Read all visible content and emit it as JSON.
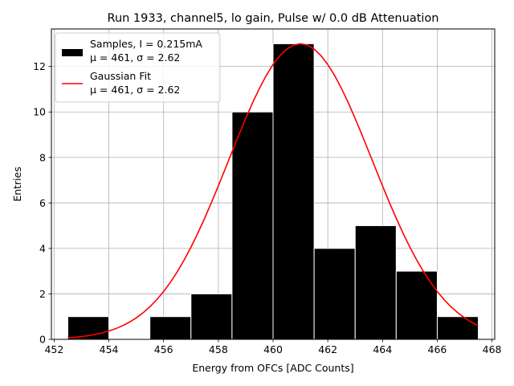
{
  "chart_data": {
    "type": "bar",
    "title": "Run 1933, channel5, lo gain, Pulse w/ 0.0 dB Attenuation",
    "xlabel": "Energy from OFCs [ADC Counts]",
    "ylabel": "Entries",
    "xlim": [
      451.9,
      468.1
    ],
    "ylim": [
      0,
      13.65
    ],
    "xticks": [
      452,
      454,
      456,
      458,
      460,
      462,
      464,
      466,
      468
    ],
    "xtick_labels": [
      "452",
      "454",
      "456",
      "458",
      "460",
      "462",
      "464",
      "466",
      "468"
    ],
    "yticks": [
      0,
      2,
      4,
      6,
      8,
      10,
      12
    ],
    "ytick_labels": [
      "0",
      "2",
      "4",
      "6",
      "8",
      "10",
      "12"
    ],
    "grid": true,
    "legend_position": "top-left",
    "histogram": {
      "name": "Samples, I = 0.215mA",
      "bins": [
        {
          "x0": 452.5,
          "x1": 454.0,
          "count": 1
        },
        {
          "x0": 455.5,
          "x1": 457.0,
          "count": 1
        },
        {
          "x0": 457.0,
          "x1": 458.5,
          "count": 2
        },
        {
          "x0": 458.5,
          "x1": 460.0,
          "count": 10
        },
        {
          "x0": 460.0,
          "x1": 461.5,
          "count": 13
        },
        {
          "x0": 461.5,
          "x1": 463.0,
          "count": 4
        },
        {
          "x0": 463.0,
          "x1": 464.5,
          "count": 5
        },
        {
          "x0": 464.5,
          "x1": 466.0,
          "count": 3
        },
        {
          "x0": 466.0,
          "x1": 467.5,
          "count": 1
        }
      ],
      "color": "#000000",
      "edgecolor": "#ffffff"
    },
    "fit": {
      "name": "Gaussian Fit",
      "type": "line",
      "amplitude": 13.0,
      "mu": 461.0,
      "sigma": 2.62,
      "x_range": [
        452.5,
        467.5
      ],
      "color": "#ff0000"
    },
    "legend": [
      {
        "label": "Samples, I = 0.215mA",
        "stats": "μ = 461, σ = 2.62",
        "kind": "bar"
      },
      {
        "label": "Gaussian Fit",
        "stats": "μ = 461, σ = 2.62",
        "kind": "line"
      }
    ]
  }
}
